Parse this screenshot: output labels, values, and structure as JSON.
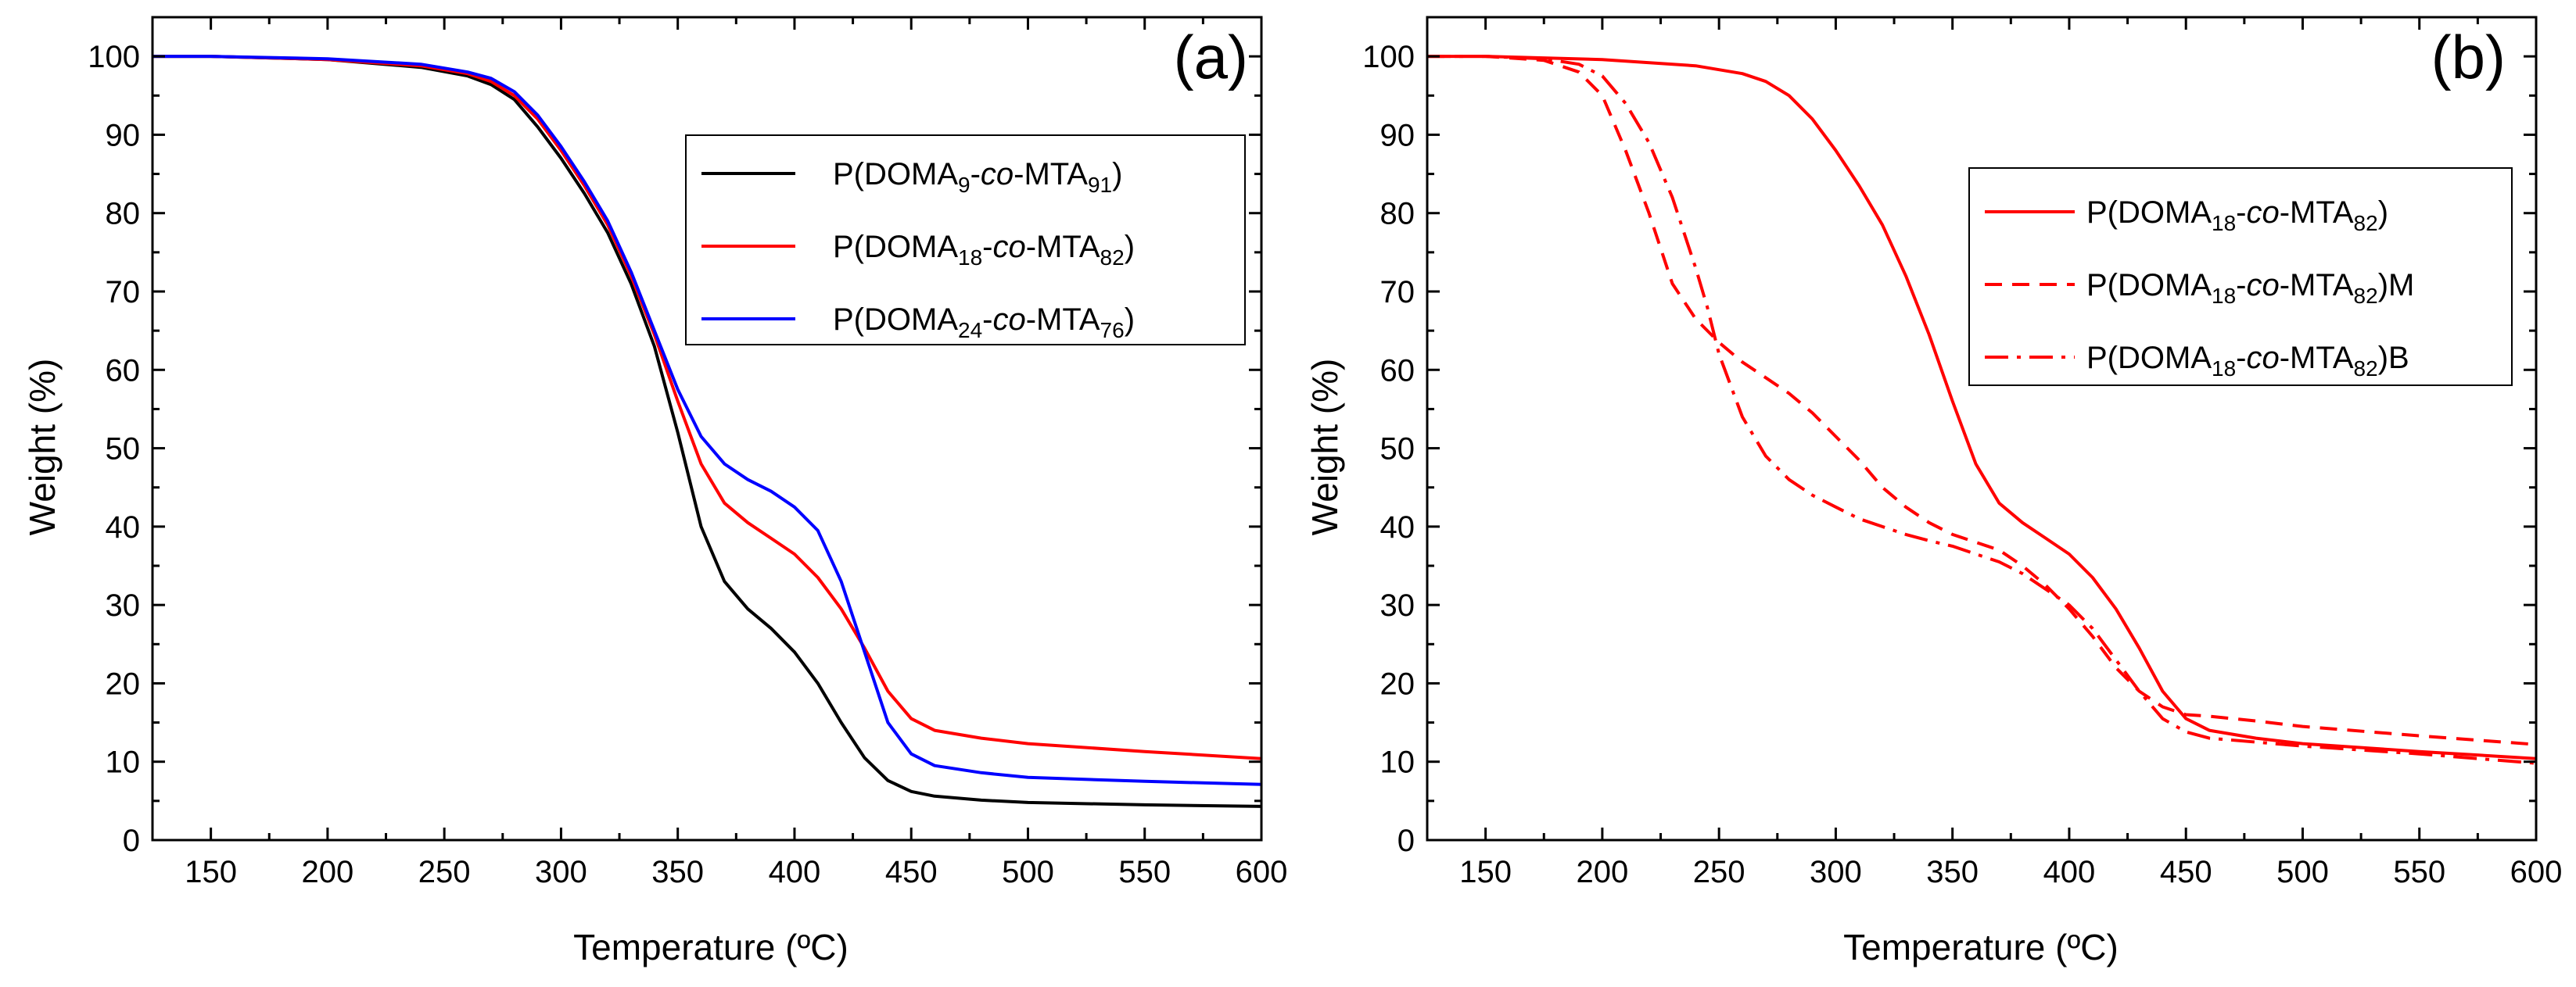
{
  "chart_data": [
    {
      "panel_label": "(a)",
      "type": "line",
      "xlabel": "Temperature (ºC)",
      "ylabel": "Weight (%)",
      "xlim": [
        125,
        600
      ],
      "ylim": [
        0,
        105
      ],
      "xticks": [
        "150",
        "200",
        "250",
        "300",
        "350",
        "400",
        "450",
        "500",
        "550",
        "600"
      ],
      "yticks": [
        "0",
        "10",
        "20",
        "30",
        "40",
        "50",
        "60",
        "70",
        "80",
        "90",
        "100"
      ],
      "legend_position": "top-right",
      "series": [
        {
          "name": "P(DOMA9-co-MTA91)",
          "legend_parts": [
            "P(DOMA",
            "9",
            "-",
            "co",
            "-MTA",
            "91",
            ")"
          ],
          "color": "#000000",
          "dash": "solid",
          "x": [
            125,
            150,
            200,
            240,
            260,
            270,
            280,
            290,
            300,
            310,
            320,
            330,
            340,
            350,
            360,
            370,
            380,
            390,
            400,
            410,
            420,
            430,
            440,
            450,
            460,
            480,
            500,
            550,
            600
          ],
          "y": [
            100,
            100,
            99.6,
            98.6,
            97.5,
            96.4,
            94.5,
            91.0,
            87.0,
            82.5,
            77.5,
            71.0,
            63.0,
            52.0,
            40.0,
            33.0,
            29.5,
            27.0,
            24.0,
            20.0,
            15.0,
            10.5,
            7.6,
            6.2,
            5.6,
            5.1,
            4.8,
            4.5,
            4.3
          ]
        },
        {
          "name": "P(DOMA18-co-MTA82)",
          "legend_parts": [
            "P(DOMA",
            "18",
            "-",
            "co",
            "-MTA",
            "82",
            ")"
          ],
          "color": "#ff0000",
          "dash": "solid",
          "x": [
            125,
            150,
            200,
            240,
            260,
            270,
            280,
            290,
            300,
            310,
            320,
            330,
            340,
            350,
            360,
            370,
            380,
            390,
            400,
            410,
            420,
            430,
            440,
            450,
            460,
            480,
            500,
            550,
            600
          ],
          "y": [
            100,
            100,
            99.6,
            98.8,
            97.8,
            96.8,
            95.0,
            92.0,
            88.0,
            83.5,
            78.5,
            72.0,
            64.5,
            56.0,
            48.0,
            43.0,
            40.5,
            38.5,
            36.5,
            33.5,
            29.5,
            24.5,
            19.0,
            15.5,
            14.0,
            13.0,
            12.3,
            11.3,
            10.4
          ]
        },
        {
          "name": "P(DOMA24-co-MTA76)",
          "legend_parts": [
            "P(DOMA",
            "24",
            "-",
            "co",
            "-MTA",
            "76",
            ")"
          ],
          "color": "#0000ff",
          "dash": "solid",
          "x": [
            125,
            150,
            200,
            240,
            260,
            270,
            280,
            290,
            300,
            310,
            320,
            330,
            340,
            350,
            360,
            370,
            380,
            390,
            400,
            410,
            420,
            430,
            440,
            450,
            460,
            480,
            500,
            550,
            600
          ],
          "y": [
            100,
            100,
            99.7,
            99.0,
            98.0,
            97.2,
            95.5,
            92.5,
            88.5,
            84.0,
            79.0,
            72.5,
            65.0,
            57.5,
            51.5,
            48.0,
            46.0,
            44.5,
            42.5,
            39.5,
            33.0,
            24.0,
            15.0,
            11.0,
            9.5,
            8.6,
            8.0,
            7.5,
            7.1
          ]
        }
      ]
    },
    {
      "panel_label": "(b)",
      "type": "line",
      "xlabel": "Temperature (ºC)",
      "ylabel": "Weight (%)",
      "xlim": [
        125,
        600
      ],
      "ylim": [
        0,
        105
      ],
      "xticks": [
        "150",
        "200",
        "250",
        "300",
        "350",
        "400",
        "450",
        "500",
        "550",
        "600"
      ],
      "yticks": [
        "0",
        "10",
        "20",
        "30",
        "40",
        "50",
        "60",
        "70",
        "80",
        "90",
        "100"
      ],
      "legend_position": "top-right",
      "series": [
        {
          "name": "P(DOMA18-co-MTA82)",
          "legend_parts": [
            "P(DOMA",
            "18",
            "-",
            "co",
            "-MTA",
            "82",
            ")"
          ],
          "color": "#ff0000",
          "dash": "solid",
          "x": [
            125,
            150,
            200,
            240,
            260,
            270,
            280,
            290,
            300,
            310,
            320,
            330,
            340,
            350,
            360,
            370,
            380,
            390,
            400,
            410,
            420,
            430,
            440,
            450,
            460,
            480,
            500,
            550,
            600
          ],
          "y": [
            100,
            100,
            99.6,
            98.8,
            97.8,
            96.8,
            95.0,
            92.0,
            88.0,
            83.5,
            78.5,
            72.0,
            64.5,
            56.0,
            48.0,
            43.0,
            40.5,
            38.5,
            36.5,
            33.5,
            29.5,
            24.5,
            19.0,
            15.5,
            14.0,
            13.0,
            12.3,
            11.3,
            10.4
          ]
        },
        {
          "name": "P(DOMA18-co-MTA82)M",
          "legend_parts": [
            "P(DOMA",
            "18",
            "-",
            "co",
            "-MTA",
            "82",
            ")M"
          ],
          "color": "#ff0000",
          "dash": "dashed",
          "x": [
            125,
            150,
            175,
            190,
            200,
            210,
            220,
            230,
            240,
            250,
            260,
            270,
            280,
            290,
            300,
            310,
            320,
            330,
            340,
            350,
            360,
            370,
            380,
            390,
            400,
            410,
            420,
            430,
            440,
            450,
            460,
            480,
            500,
            550,
            600
          ],
          "y": [
            100,
            100,
            99.5,
            98.0,
            95.0,
            88.0,
            80.0,
            71.0,
            66.5,
            63.5,
            61.0,
            59.0,
            57.0,
            54.5,
            51.5,
            48.5,
            45.0,
            42.5,
            40.5,
            39.0,
            38.0,
            37.0,
            35.0,
            32.5,
            29.5,
            26.0,
            22.0,
            19.0,
            17.0,
            16.0,
            15.8,
            15.2,
            14.5,
            13.3,
            12.2
          ]
        },
        {
          "name": "P(DOMA18-co-MTA82)B",
          "legend_parts": [
            "P(DOMA",
            "18",
            "-",
            "co",
            "-MTA",
            "82",
            ")B"
          ],
          "color": "#ff0000",
          "dash": "dashdot",
          "x": [
            125,
            150,
            175,
            190,
            200,
            210,
            220,
            230,
            240,
            245,
            250,
            260,
            270,
            280,
            290,
            300,
            310,
            320,
            330,
            340,
            350,
            360,
            370,
            380,
            390,
            400,
            410,
            420,
            430,
            440,
            450,
            460,
            480,
            500,
            550,
            600
          ],
          "y": [
            100,
            100,
            99.7,
            99.0,
            97.5,
            94.0,
            89.0,
            82.0,
            73.0,
            68.0,
            62.0,
            54.0,
            49.0,
            46.0,
            44.0,
            42.5,
            41.0,
            40.0,
            39.0,
            38.2,
            37.5,
            36.5,
            35.5,
            34.0,
            32.0,
            30.0,
            27.0,
            23.0,
            19.0,
            15.5,
            13.8,
            13.0,
            12.5,
            12.0,
            11.0,
            9.8
          ]
        }
      ]
    }
  ]
}
